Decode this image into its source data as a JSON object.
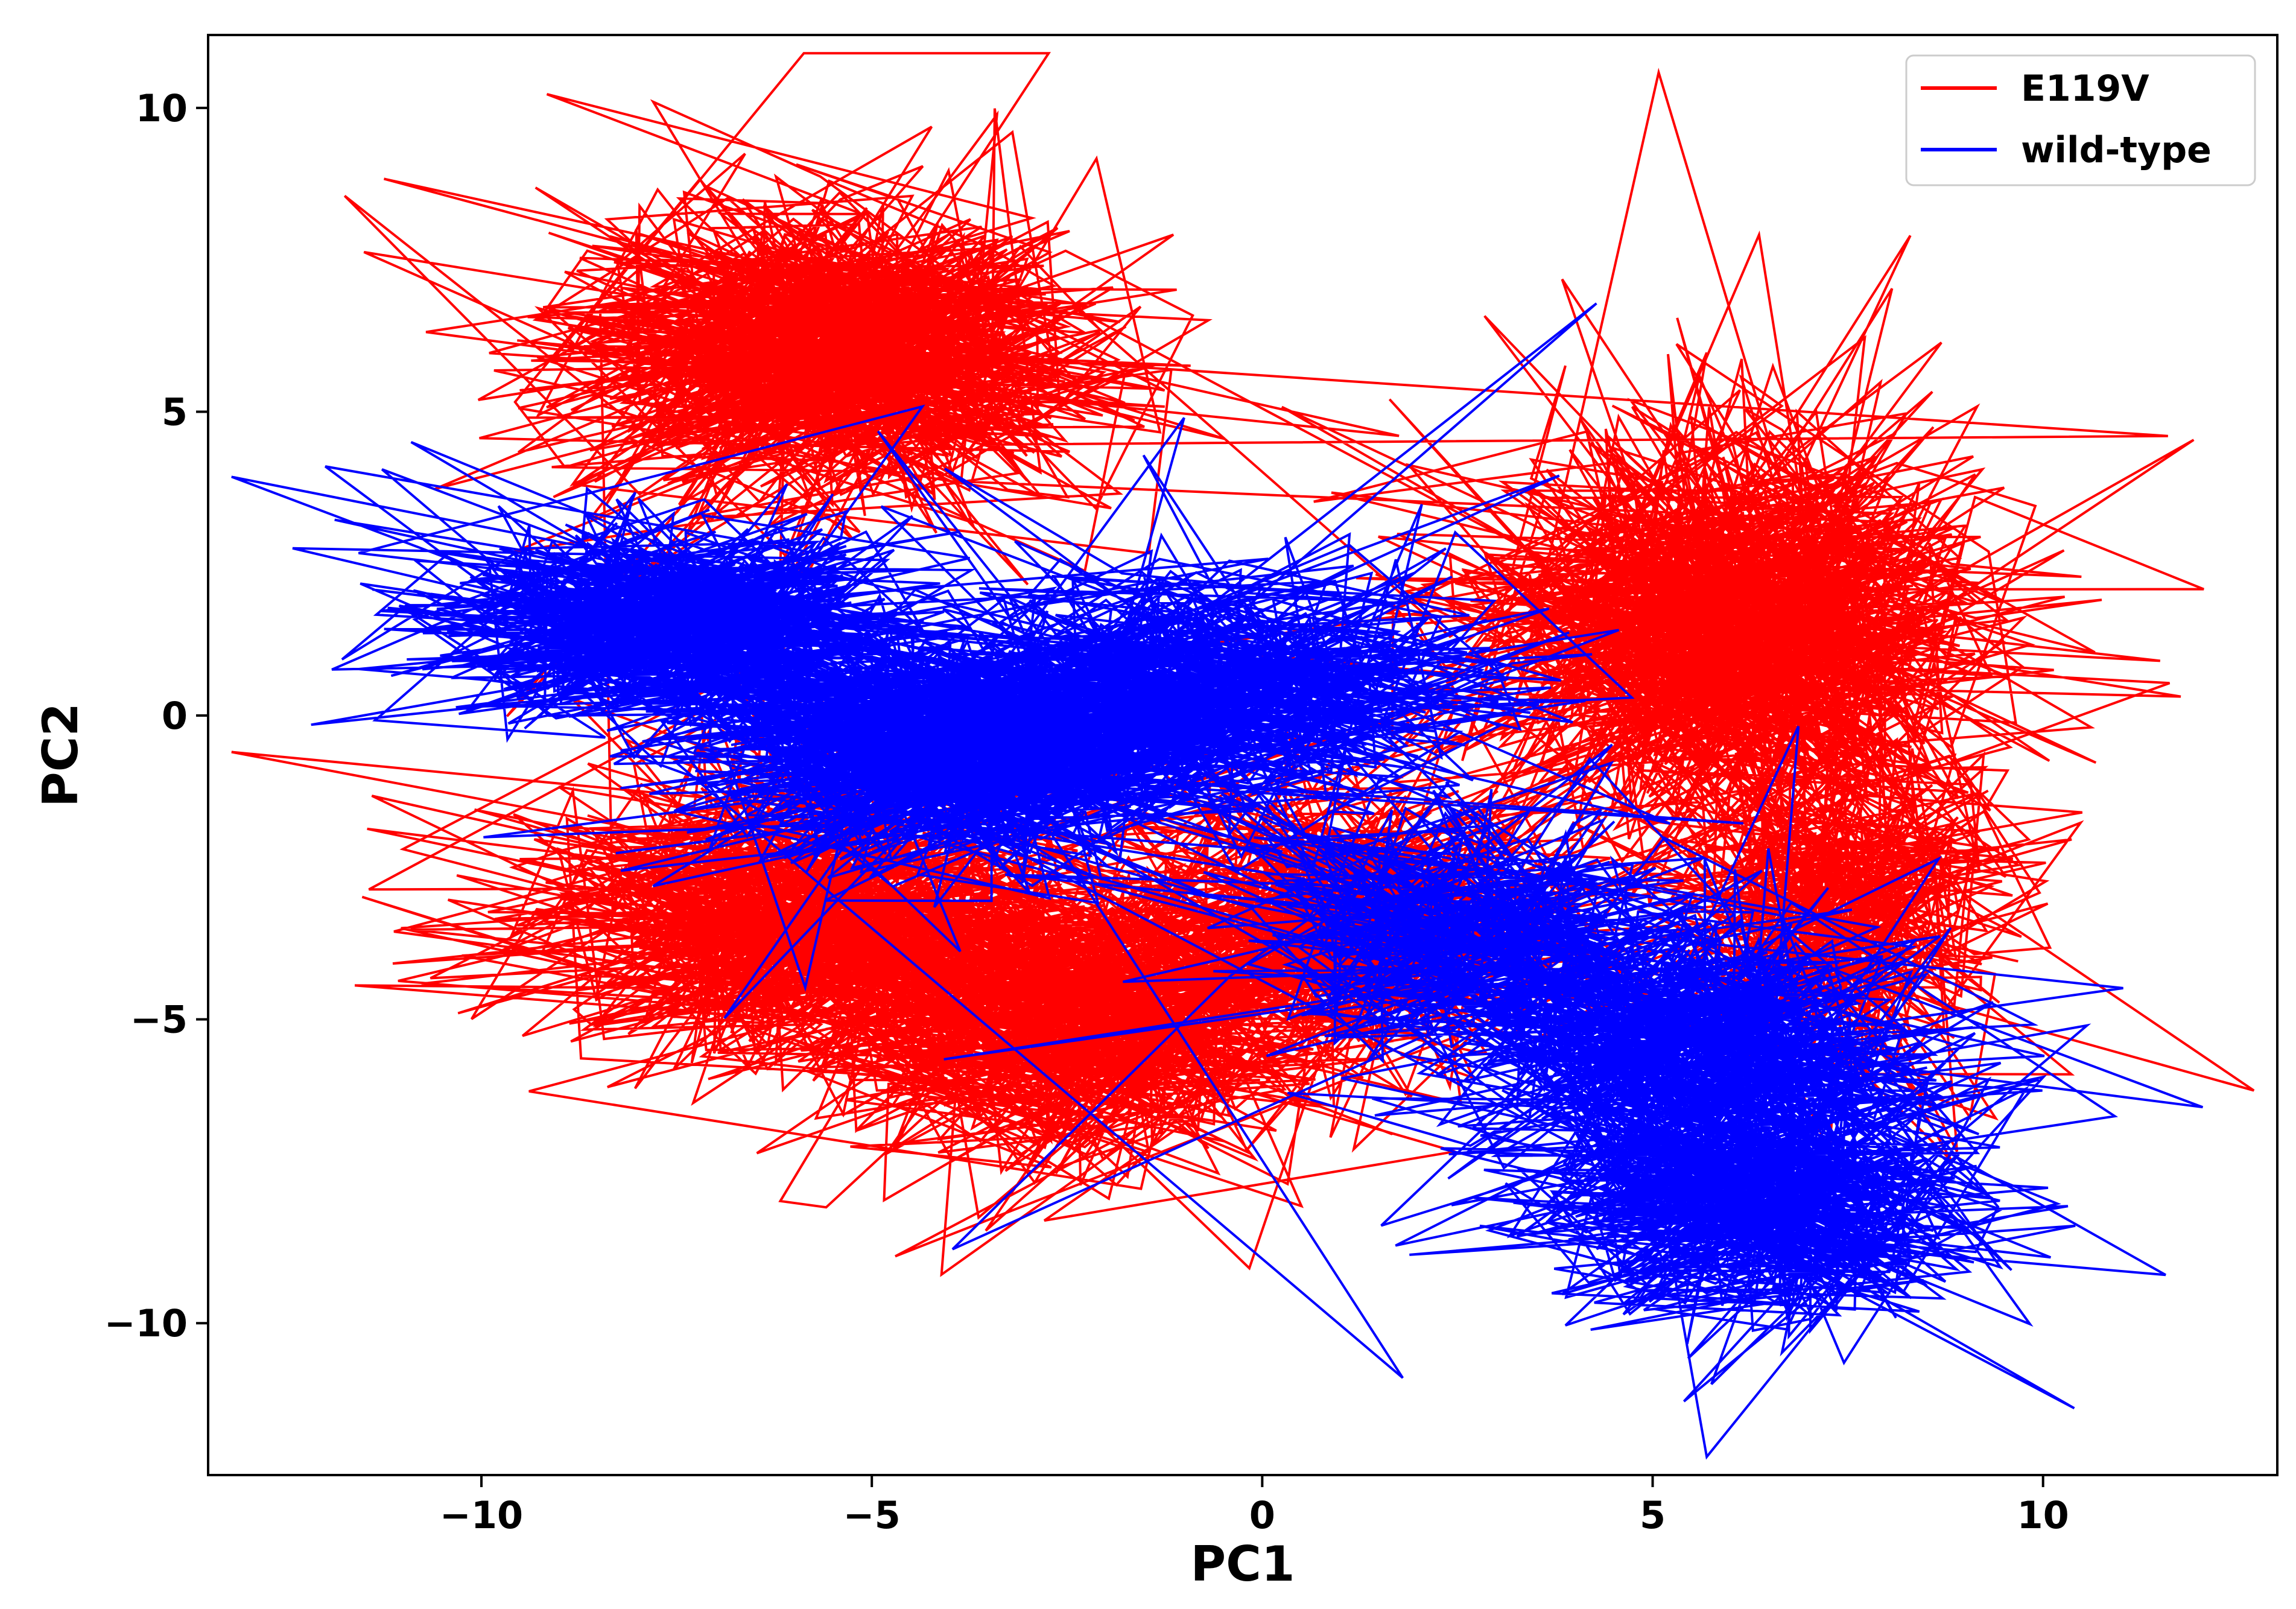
{
  "chart_data": {
    "type": "line",
    "title": "",
    "xlabel": "PC1",
    "ylabel": "PC2",
    "xlim": [
      -13.5,
      13
    ],
    "ylim": [
      -12.5,
      11.2
    ],
    "xticks": [
      -10,
      -5,
      0,
      5,
      10
    ],
    "yticks": [
      10,
      5,
      0,
      -5,
      -10
    ],
    "xtick_labels": [
      "−10",
      "−5",
      "0",
      "5",
      "10"
    ],
    "ytick_labels": [
      "10",
      "5",
      "0",
      "−5",
      "−10"
    ],
    "grid": false,
    "legend": {
      "position": "top-right",
      "entries": [
        "E119V",
        "wild-type"
      ]
    },
    "series": [
      {
        "name": "E119V",
        "color": "#ff0000",
        "clusters": [
          {
            "cx": -5.5,
            "cy": 6.0,
            "sx": 1.8,
            "sy": 1.3,
            "n": 900
          },
          {
            "cx": 6.0,
            "cy": 1.5,
            "sx": 1.7,
            "sy": 1.7,
            "n": 1000
          },
          {
            "cx": -6.0,
            "cy": -3.3,
            "sx": 1.8,
            "sy": 1.2,
            "n": 700
          },
          {
            "cx": -2.5,
            "cy": -5.0,
            "sx": 1.8,
            "sy": 1.2,
            "n": 700
          },
          {
            "cx": 1.0,
            "cy": -3.5,
            "sx": 1.5,
            "sy": 1.3,
            "n": 500
          },
          {
            "cx": 7.5,
            "cy": -3.0,
            "sx": 1.2,
            "sy": 1.4,
            "n": 400
          }
        ],
        "extremes": [
          {
            "x": -7.8,
            "y": 10.1
          },
          {
            "x": -3.2,
            "y": 9.6
          },
          {
            "x": 11.6,
            "y": 4.6
          },
          {
            "x": 11.5,
            "y": 0.9
          },
          {
            "x": -10.3,
            "y": -4.9
          },
          {
            "x": -4.7,
            "y": -8.9
          },
          {
            "x": 8.3,
            "y": 7.9
          }
        ]
      },
      {
        "name": "wild-type",
        "color": "#0000ff",
        "clusters": [
          {
            "cx": -7.5,
            "cy": 1.5,
            "sx": 1.6,
            "sy": 0.8,
            "n": 700
          },
          {
            "cx": -4.0,
            "cy": -0.5,
            "sx": 1.8,
            "sy": 1.0,
            "n": 900
          },
          {
            "cx": -0.5,
            "cy": 0.5,
            "sx": 1.8,
            "sy": 1.0,
            "n": 500
          },
          {
            "cx": 2.5,
            "cy": -3.5,
            "sx": 1.5,
            "sy": 1.0,
            "n": 400
          },
          {
            "cx": 5.5,
            "cy": -5.5,
            "sx": 1.6,
            "sy": 1.2,
            "n": 600
          },
          {
            "cx": 6.5,
            "cy": -8.0,
            "sx": 1.4,
            "sy": 1.0,
            "n": 600
          }
        ],
        "extremes": [
          {
            "x": -12.0,
            "y": 4.1
          },
          {
            "x": -10.9,
            "y": 4.5
          },
          {
            "x": -1.0,
            "y": 4.9
          },
          {
            "x": 10.4,
            "y": -11.4
          },
          {
            "x": 1.8,
            "y": -10.9
          },
          {
            "x": 9.2,
            "y": -8.6
          }
        ]
      }
    ]
  }
}
